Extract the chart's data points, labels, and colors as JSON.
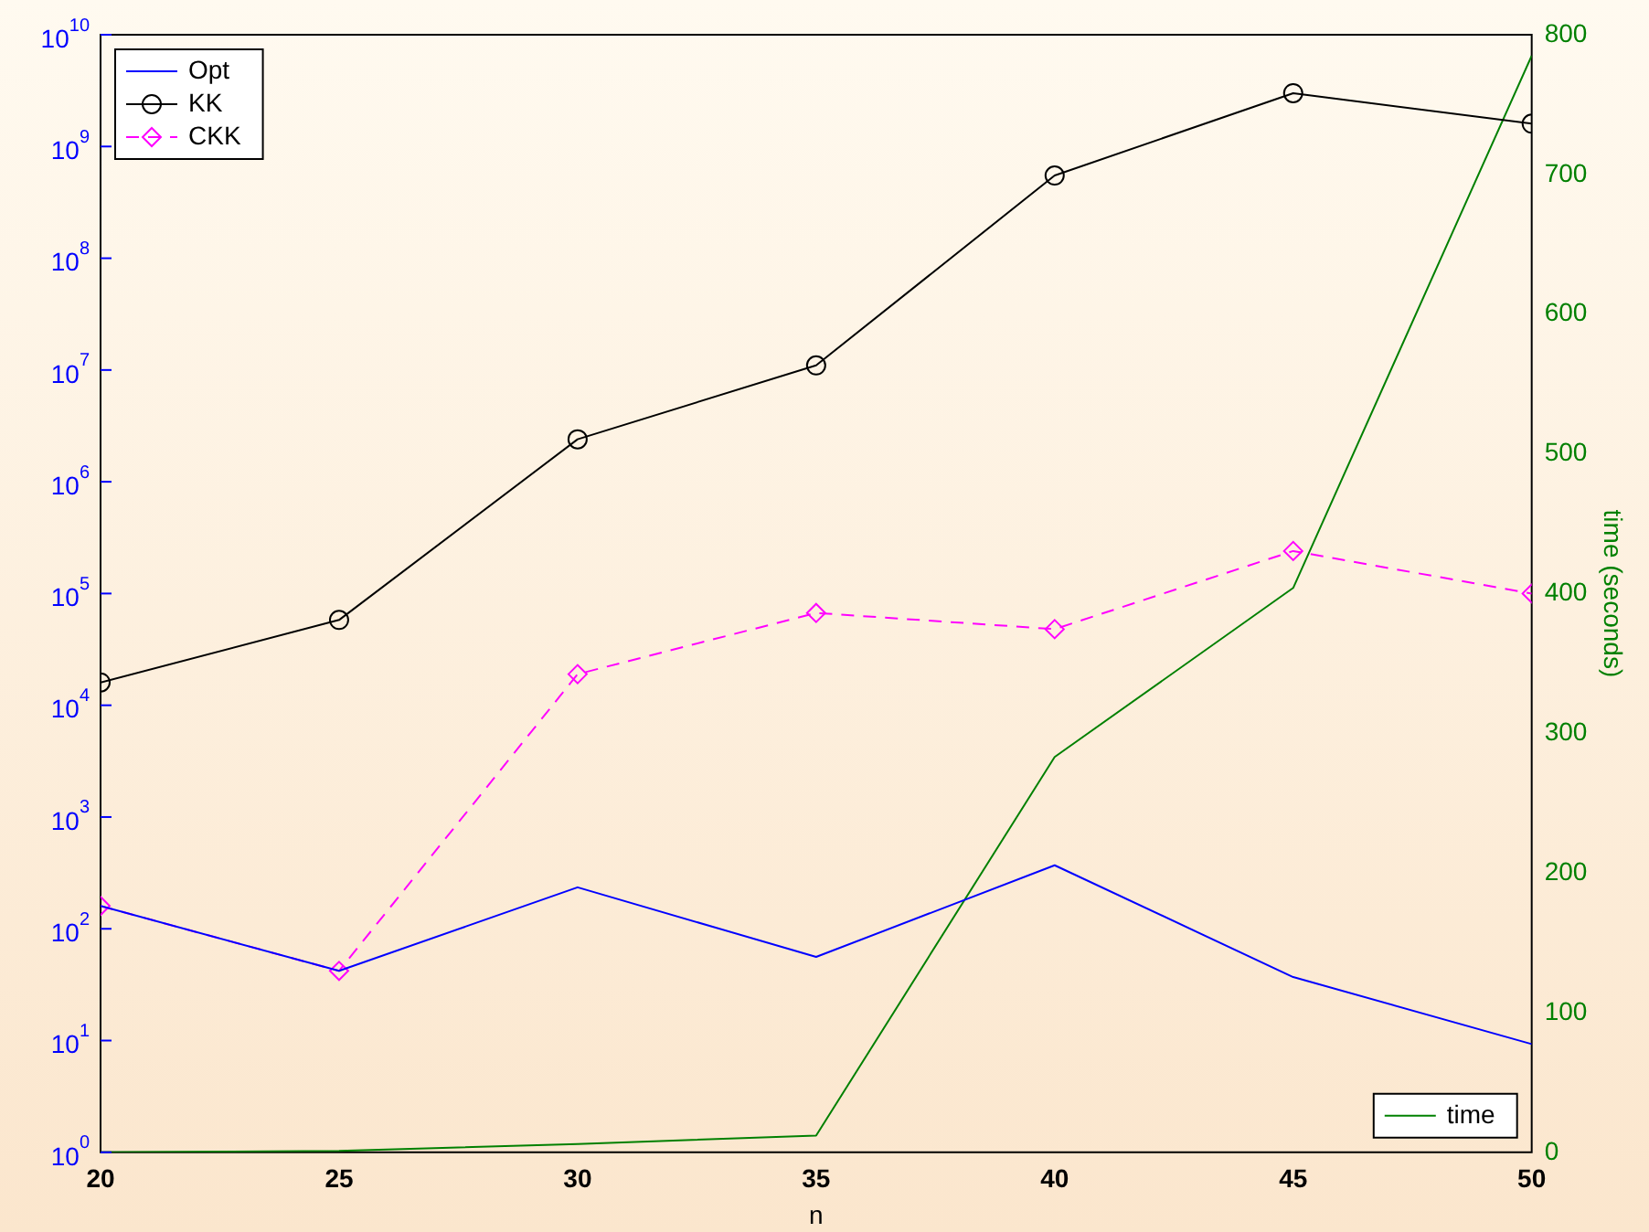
{
  "chart_data": {
    "type": "line",
    "xlabel": "n",
    "y2label": "time (seconds)",
    "x": [
      20,
      25,
      30,
      35,
      40,
      45,
      50
    ],
    "xlim": [
      20,
      50
    ],
    "xticks": [
      20,
      25,
      30,
      35,
      40,
      45,
      50
    ],
    "log": "y",
    "ylim": [
      1,
      10000000000
    ],
    "yticks": [
      {
        "value": 1,
        "label": "10$^{0}$"
      },
      {
        "value": 10,
        "label": "10$^{1}$"
      },
      {
        "value": 100,
        "label": "10$^{2}$"
      },
      {
        "value": 1000,
        "label": "10$^{3}$"
      },
      {
        "value": 10000,
        "label": "10$^{4}$"
      },
      {
        "value": 100000,
        "label": "10$^{5}$"
      },
      {
        "value": 1000000,
        "label": "10$^{6}$"
      },
      {
        "value": 10000000,
        "label": "10$^{7}$"
      },
      {
        "value": 100000000,
        "label": "10$^{8}$"
      },
      {
        "value": 1000000000,
        "label": "10$^{9}$"
      },
      {
        "value": 10000000000,
        "label": "10$^{10}$"
      }
    ],
    "y2lim": [
      0,
      800
    ],
    "y2ticks": [
      0,
      100,
      200,
      300,
      400,
      500,
      600,
      700,
      800
    ],
    "grid": false,
    "legend": "top left",
    "series": [
      {
        "name": "Opt",
        "color": "#0000ff",
        "marker": "none",
        "line_style": "solid",
        "values": [
          160,
          42,
          235,
          56,
          370,
          37,
          9.3
        ]
      },
      {
        "name": "KK",
        "color": "#000000",
        "marker": "circle",
        "line_style": "solid",
        "values": [
          16000,
          58000,
          2400000,
          11000000,
          550000000,
          3000000000,
          1600000000
        ]
      },
      {
        "name": "CKK",
        "color": "#ff00ff",
        "marker": "diamond",
        "line_style": "dashed",
        "values": [
          160,
          42,
          19000,
          67000,
          48000,
          240000,
          100000
        ]
      },
      {
        "name": "time",
        "color": "#008000",
        "marker": "none",
        "line_style": "solid",
        "axis": "y2",
        "values": [
          0,
          1,
          6,
          12,
          283,
          404,
          785
        ]
      }
    ]
  }
}
